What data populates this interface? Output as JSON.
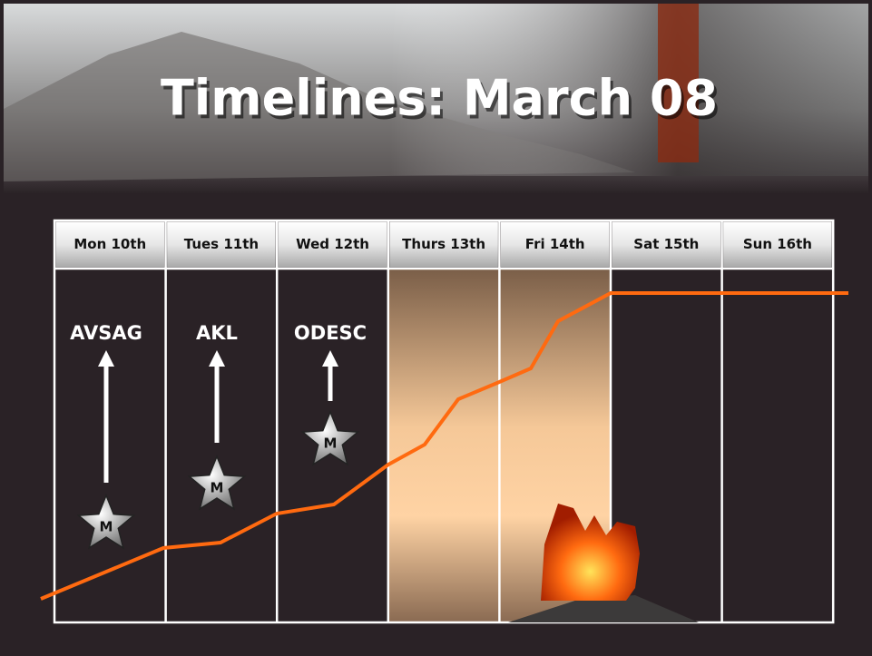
{
  "header": {
    "title": "Timelines: March 08"
  },
  "days": [
    "Mon 10th",
    "Tues 11th",
    "Wed 12th",
    "Thurs 13th",
    "Fri 14th",
    "Sat 15th",
    "Sun 16th"
  ],
  "events": [
    {
      "label": "AVSAG",
      "marker": "M"
    },
    {
      "label": "AKL",
      "marker": "M"
    },
    {
      "label": "ODESC",
      "marker": "M"
    }
  ]
}
